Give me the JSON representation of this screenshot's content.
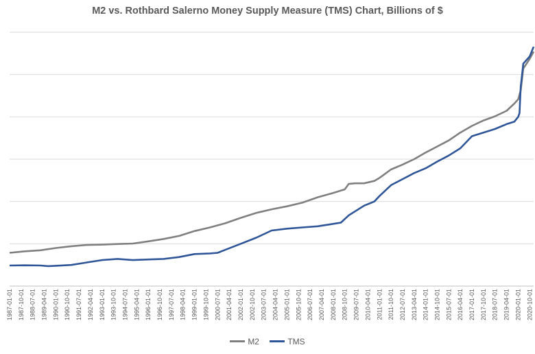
{
  "chart_data": {
    "type": "line",
    "title": "M2 vs. Rothbard Salerno Money Supply Measure (TMS) Chart, Billions of $",
    "x_tick_labels": [
      "1987-01-01",
      "1987-10-01",
      "1988-07-01",
      "1989-04-01",
      "1990-01-01",
      "1990-10-01",
      "1991-07-01",
      "1992-04-01",
      "1993-01-01",
      "1993-10-01",
      "1994-07-01",
      "1995-04-01",
      "1996-01-01",
      "1996-10-01",
      "1997-07-01",
      "1998-04-01",
      "1999-01-01",
      "1999-10-01",
      "2000-07-01",
      "2001-04-01",
      "2002-01-01",
      "2002-10-01",
      "2003-07-01",
      "2004-04-01",
      "2005-01-01",
      "2005-10-01",
      "2006-07-01",
      "2007-04-01",
      "2008-01-01",
      "2008-10-01",
      "2009-07-01",
      "2010-04-01",
      "2011-01-01",
      "2011-10-01",
      "2012-07-01",
      "2013-04-01",
      "2014-01-01",
      "2014-10-01",
      "2015-07-01",
      "2016-04-01",
      "2017-01-01",
      "2017-10-01",
      "2018-07-01",
      "2019-04-01",
      "2020-01-01",
      "2020-10-01"
    ],
    "y_axis_labels_shown": false,
    "grid": "horizontal",
    "legend_position": "bottom",
    "series": [
      {
        "name": "M2",
        "color": "#7f7f7f",
        "points": [
          [
            "1987-01-01",
            2750
          ],
          [
            "1988-01-01",
            2880
          ],
          [
            "1989-01-01",
            2960
          ],
          [
            "1990-01-01",
            3150
          ],
          [
            "1991-01-01",
            3300
          ],
          [
            "1992-01-01",
            3400
          ],
          [
            "1993-01-01",
            3430
          ],
          [
            "1994-01-01",
            3480
          ],
          [
            "1995-01-01",
            3520
          ],
          [
            "1996-01-01",
            3700
          ],
          [
            "1997-01-01",
            3900
          ],
          [
            "1998-01-01",
            4150
          ],
          [
            "1999-01-01",
            4550
          ],
          [
            "2000-01-01",
            4850
          ],
          [
            "2001-01-01",
            5200
          ],
          [
            "2002-01-01",
            5650
          ],
          [
            "2003-01-01",
            6050
          ],
          [
            "2004-01-01",
            6350
          ],
          [
            "2005-01-01",
            6600
          ],
          [
            "2006-01-01",
            6900
          ],
          [
            "2007-01-01",
            7350
          ],
          [
            "2008-01-01",
            7700
          ],
          [
            "2008-10-01",
            8000
          ],
          [
            "2009-01-01",
            8450
          ],
          [
            "2009-06-01",
            8500
          ],
          [
            "2010-01-01",
            8500
          ],
          [
            "2010-09-01",
            8700
          ],
          [
            "2011-01-01",
            8950
          ],
          [
            "2011-10-01",
            9650
          ],
          [
            "2012-07-01",
            10050
          ],
          [
            "2013-04-01",
            10500
          ],
          [
            "2014-01-01",
            11050
          ],
          [
            "2014-10-01",
            11550
          ],
          [
            "2015-07-01",
            12050
          ],
          [
            "2016-04-01",
            12700
          ],
          [
            "2017-01-01",
            13250
          ],
          [
            "2017-10-01",
            13700
          ],
          [
            "2018-07-01",
            14050
          ],
          [
            "2019-04-01",
            14500
          ],
          [
            "2019-10-01",
            15100
          ],
          [
            "2020-01-01",
            15450
          ],
          [
            "2020-03-01",
            16200
          ],
          [
            "2020-05-01",
            18000
          ],
          [
            "2020-10-01",
            18800
          ],
          [
            "2021-01-01",
            19400
          ]
        ]
      },
      {
        "name": "TMS",
        "color": "#2e5597",
        "points": [
          [
            "1987-01-01",
            1700
          ],
          [
            "1988-01-01",
            1720
          ],
          [
            "1989-01-01",
            1700
          ],
          [
            "1989-07-01",
            1650
          ],
          [
            "1990-01-01",
            1680
          ],
          [
            "1991-01-01",
            1750
          ],
          [
            "1992-01-01",
            1950
          ],
          [
            "1993-01-01",
            2150
          ],
          [
            "1994-01-01",
            2250
          ],
          [
            "1995-01-01",
            2150
          ],
          [
            "1996-01-01",
            2200
          ],
          [
            "1997-01-01",
            2250
          ],
          [
            "1998-01-01",
            2400
          ],
          [
            "1999-01-01",
            2650
          ],
          [
            "2000-01-01",
            2700
          ],
          [
            "2000-07-01",
            2750
          ],
          [
            "2001-01-01",
            3000
          ],
          [
            "2002-01-01",
            3500
          ],
          [
            "2003-01-01",
            4000
          ],
          [
            "2004-01-01",
            4600
          ],
          [
            "2005-01-01",
            4750
          ],
          [
            "2006-01-01",
            4850
          ],
          [
            "2007-01-01",
            4950
          ],
          [
            "2008-01-01",
            5150
          ],
          [
            "2008-07-01",
            5250
          ],
          [
            "2009-01-01",
            5850
          ],
          [
            "2010-01-01",
            6650
          ],
          [
            "2010-09-01",
            7000
          ],
          [
            "2011-01-01",
            7450
          ],
          [
            "2011-10-01",
            8350
          ],
          [
            "2012-07-01",
            8850
          ],
          [
            "2013-04-01",
            9350
          ],
          [
            "2014-01-01",
            9750
          ],
          [
            "2014-10-01",
            10300
          ],
          [
            "2015-07-01",
            10800
          ],
          [
            "2016-04-01",
            11400
          ],
          [
            "2017-01-01",
            12400
          ],
          [
            "2017-10-01",
            12700
          ],
          [
            "2018-07-01",
            13000
          ],
          [
            "2019-04-01",
            13400
          ],
          [
            "2019-10-01",
            13600
          ],
          [
            "2020-01-01",
            14000
          ],
          [
            "2020-02-01",
            14300
          ],
          [
            "2020-03-01",
            16500
          ],
          [
            "2020-05-01",
            18400
          ],
          [
            "2020-10-01",
            19000
          ],
          [
            "2021-01-01",
            19800
          ]
        ]
      }
    ],
    "ylim": [
      0,
      21000
    ],
    "gridline_values": [
      0,
      3500,
      7000,
      10500,
      14000,
      17500,
      21000
    ]
  }
}
